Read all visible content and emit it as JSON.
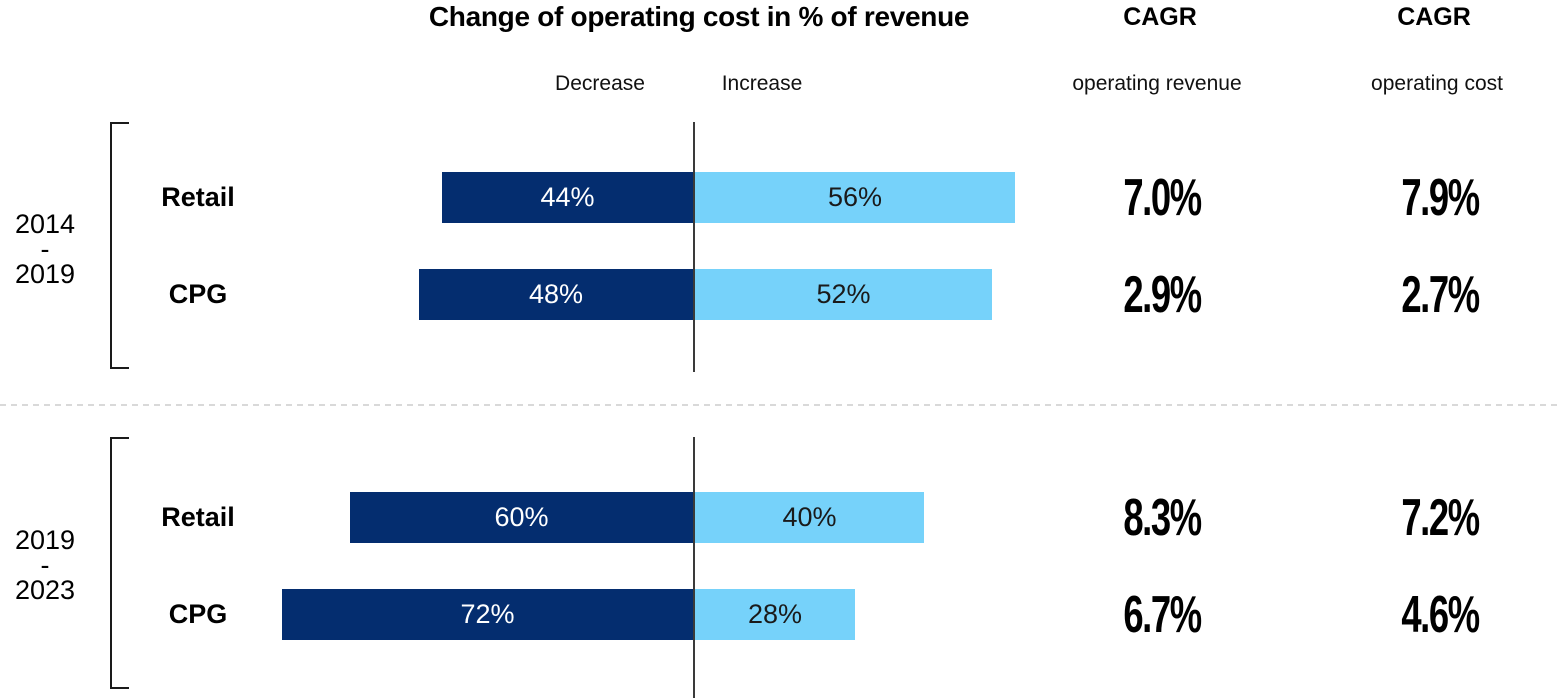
{
  "title": "Change of operating cost in % of revenue",
  "axis": {
    "decrease_label": "Decrease",
    "increase_label": "Increase"
  },
  "cagr_columns": {
    "revenue": {
      "header": "CAGR",
      "subheader": "operating revenue"
    },
    "cost": {
      "header": "CAGR",
      "subheader": "operating cost"
    }
  },
  "colors": {
    "decrease_bar": "#042d6f",
    "increase_bar": "#76d2fa",
    "bar_text_on_dark": "#ffffff",
    "bar_text_on_light": "#1a1a1a",
    "zero_axis_line": "#3a3a3a",
    "group_separator": "#d9d9d9",
    "bracket": "#1a1a1a"
  },
  "groups": [
    {
      "period": "2014\n-\n2019",
      "rows": [
        {
          "label": "Retail",
          "decrease_pct": 44,
          "increase_pct": 56,
          "decrease_label": "44%",
          "increase_label": "56%",
          "cagr_revenue": "7.0%",
          "cagr_cost": "7.9%"
        },
        {
          "label": "CPG",
          "decrease_pct": 48,
          "increase_pct": 52,
          "decrease_label": "48%",
          "increase_label": "52%",
          "cagr_revenue": "2.9%",
          "cagr_cost": "2.7%"
        }
      ]
    },
    {
      "period": "2019\n-\n2023",
      "rows": [
        {
          "label": "Retail",
          "decrease_pct": 60,
          "increase_pct": 40,
          "decrease_label": "60%",
          "increase_label": "40%",
          "cagr_revenue": "8.3%",
          "cagr_cost": "7.2%"
        },
        {
          "label": "CPG",
          "decrease_pct": 72,
          "increase_pct": 28,
          "decrease_label": "72%",
          "increase_label": "28%",
          "cagr_revenue": "6.7%",
          "cagr_cost": "4.6%"
        }
      ]
    }
  ],
  "chart_data": {
    "type": "bar",
    "subtype": "horizontal-diverging-stacked",
    "title": "Change of operating cost in % of revenue",
    "series_labels": [
      "Decrease",
      "Increase"
    ],
    "group_periods": [
      "2014-2019",
      "2019-2023"
    ],
    "categories": [
      "2014-2019 Retail",
      "2014-2019 CPG",
      "2019-2023 Retail",
      "2019-2023 CPG"
    ],
    "series": [
      {
        "name": "Decrease",
        "color": "#042d6f",
        "values": [
          44,
          48,
          60,
          72
        ]
      },
      {
        "name": "Increase",
        "color": "#76d2fa",
        "values": [
          56,
          52,
          40,
          28
        ]
      }
    ],
    "annotations": {
      "CAGR operating revenue": [
        "7.0%",
        "2.9%",
        "8.3%",
        "6.7%"
      ],
      "CAGR operating cost": [
        "7.9%",
        "2.7%",
        "7.2%",
        "4.6%"
      ]
    },
    "baseline": 0,
    "unit": "%",
    "legend_position": "top (Decrease left of axis, Increase right of axis)",
    "grid": false
  }
}
